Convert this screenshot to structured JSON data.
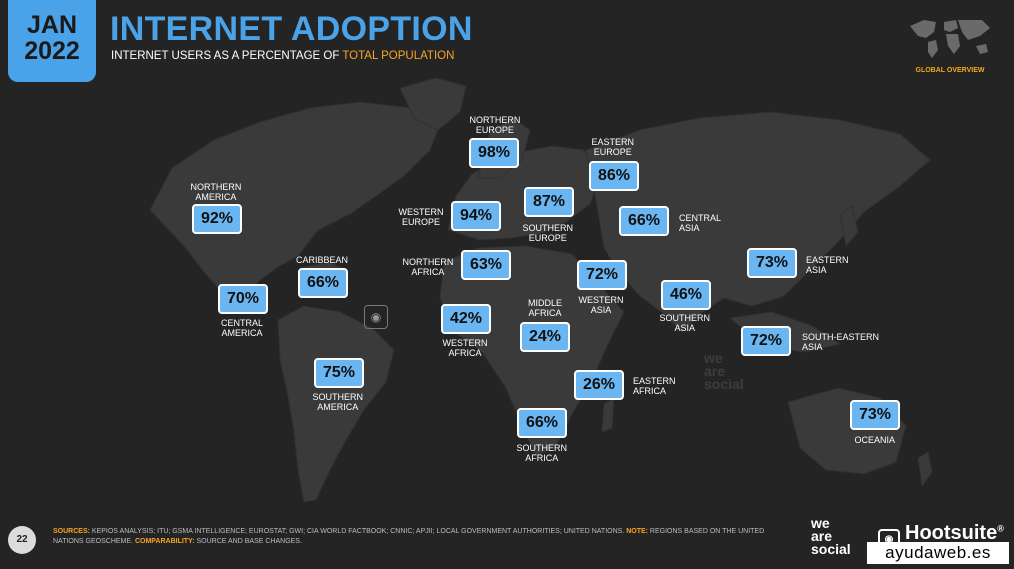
{
  "header": {
    "date_month": "JAN",
    "date_year": "2022",
    "title": "INTERNET ADOPTION",
    "subtitle_prefix": "INTERNET USERS AS A PERCENTAGE OF ",
    "subtitle_highlight": "TOTAL POPULATION",
    "global_overview": "GLOBAL OVERVIEW"
  },
  "colors": {
    "accent": "#4aa3e8",
    "tag_fill": "#69b6f2",
    "highlight": "#f5a623",
    "background": "#242424",
    "land": "#3a3a3a"
  },
  "chart_data": {
    "type": "map",
    "title": "INTERNET ADOPTION",
    "subtitle": "INTERNET USERS AS A PERCENTAGE OF TOTAL POPULATION",
    "unit": "%",
    "regions": [
      {
        "name": "NORTHERN AMERICA",
        "value": 92,
        "label": "92%"
      },
      {
        "name": "CARIBBEAN",
        "value": 66,
        "label": "66%"
      },
      {
        "name": "CENTRAL AMERICA",
        "value": 70,
        "label": "70%"
      },
      {
        "name": "SOUTHERN AMERICA",
        "value": 75,
        "label": "75%"
      },
      {
        "name": "NORTHERN EUROPE",
        "value": 98,
        "label": "98%"
      },
      {
        "name": "WESTERN EUROPE",
        "value": 94,
        "label": "94%"
      },
      {
        "name": "SOUTHERN EUROPE",
        "value": 87,
        "label": "87%"
      },
      {
        "name": "EASTERN EUROPE",
        "value": 86,
        "label": "86%"
      },
      {
        "name": "CENTRAL ASIA",
        "value": 66,
        "label": "66%"
      },
      {
        "name": "NORTHERN AFRICA",
        "value": 63,
        "label": "63%"
      },
      {
        "name": "WESTERN ASIA",
        "value": 72,
        "label": "72%"
      },
      {
        "name": "SOUTHERN ASIA",
        "value": 46,
        "label": "46%"
      },
      {
        "name": "EASTERN ASIA",
        "value": 73,
        "label": "73%"
      },
      {
        "name": "SOUTH-EASTERN ASIA",
        "value": 72,
        "label": "72%"
      },
      {
        "name": "WESTERN AFRICA",
        "value": 42,
        "label": "42%"
      },
      {
        "name": "MIDDLE AFRICA",
        "value": 24,
        "label": "24%"
      },
      {
        "name": "EASTERN AFRICA",
        "value": 26,
        "label": "26%"
      },
      {
        "name": "SOUTHERN AFRICA",
        "value": 66,
        "label": "66%"
      },
      {
        "name": "OCEANIA",
        "value": 73,
        "label": "73%"
      }
    ],
    "region_label_lines": {
      "NORTHERN AMERICA": [
        "NORTHERN",
        "AMERICA"
      ],
      "CARIBBEAN": [
        "CARIBBEAN"
      ],
      "CENTRAL AMERICA": [
        "CENTRAL",
        "AMERICA"
      ],
      "SOUTHERN AMERICA": [
        "SOUTHERN",
        "AMERICA"
      ],
      "NORTHERN EUROPE": [
        "NORTHERN",
        "EUROPE"
      ],
      "WESTERN EUROPE": [
        "WESTERN",
        "EUROPE"
      ],
      "SOUTHERN EUROPE": [
        "SOUTHERN",
        "EUROPE"
      ],
      "EASTERN EUROPE": [
        "EASTERN",
        "EUROPE"
      ],
      "CENTRAL ASIA": [
        "CENTRAL",
        "ASIA"
      ],
      "NORTHERN AFRICA": [
        "NORTHERN",
        "AFRICA"
      ],
      "WESTERN ASIA": [
        "WESTERN",
        "ASIA"
      ],
      "SOUTHERN ASIA": [
        "SOUTHERN",
        "ASIA"
      ],
      "EASTERN ASIA": [
        "EASTERN",
        "ASIA"
      ],
      "SOUTH-EASTERN ASIA": [
        "SOUTH-EASTERN",
        "ASIA"
      ],
      "WESTERN AFRICA": [
        "WESTERN",
        "AFRICA"
      ],
      "MIDDLE AFRICA": [
        "MIDDLE",
        "AFRICA"
      ],
      "EASTERN AFRICA": [
        "EASTERN",
        "AFRICA"
      ],
      "SOUTHERN AFRICA": [
        "SOUTHERN",
        "AFRICA"
      ],
      "OCEANIA": [
        "OCEANIA"
      ]
    }
  },
  "footer": {
    "page_number": "22",
    "sources_key": "SOURCES:",
    "sources_text": " KEPIOS ANALYSIS; ITU; GSMA INTELLIGENCE; EUROSTAT; GWI; CIA WORLD FACTBOOK; CNNIC; APJII; LOCAL GOVERNMENT AUTHORITIES; UNITED NATIONS. ",
    "note_key": "NOTE:",
    "note_text": " REGIONS BASED ON THE UNITED NATIONS GEOSCHEME. ",
    "comparability_key": "COMPARABILITY:",
    "comparability_text": " SOURCE AND BASE CHANGES.",
    "brand_was_1": "we",
    "brand_was_2": "are",
    "brand_was_3": "social",
    "brand_hootsuite": "Hootsuite",
    "brand_hootsuite_mark": "®",
    "credit": "ayudaweb.es"
  },
  "watermark": {
    "line1": "we",
    "line2": "are",
    "line3": "social"
  },
  "icons": {
    "mini_map": "world-map-icon",
    "hootsuite_owl": "owl-icon"
  }
}
